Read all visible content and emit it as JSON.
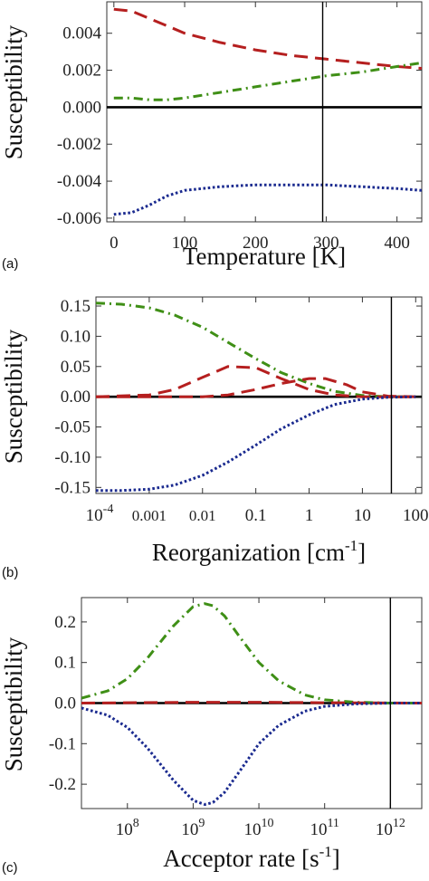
{
  "colors": {
    "red": "#b51f1f",
    "green": "#3f8f16",
    "blue": "#1a2a8f",
    "black": "#000000"
  },
  "chart_data": [
    {
      "type": "line",
      "panel_label": "(a)",
      "xlabel": "Temperature [K]",
      "ylabel": "Susceptibility",
      "xscale": "linear",
      "xlim": [
        -10,
        435
      ],
      "ylim": [
        -0.0062,
        0.0057
      ],
      "xticks": [
        0,
        100,
        200,
        300,
        400
      ],
      "xtick_labels": [
        "0",
        "100",
        "200",
        "300",
        "400"
      ],
      "yticks": [
        -0.006,
        -0.004,
        -0.002,
        0.0,
        0.002,
        0.004
      ],
      "ytick_labels": [
        "-0.006",
        "-0.004",
        "-0.002",
        "0.000",
        "0.002",
        "0.004"
      ],
      "vline": 295,
      "hline": 0,
      "series": [
        {
          "color_key": "red",
          "style": "dashed",
          "x": [
            0,
            25,
            50,
            75,
            100,
            150,
            200,
            250,
            300,
            350,
            400,
            435
          ],
          "y": [
            0.0053,
            0.0052,
            0.0048,
            0.0044,
            0.004,
            0.0035,
            0.0031,
            0.0028,
            0.0026,
            0.0024,
            0.0022,
            0.0021
          ]
        },
        {
          "color_key": "green",
          "style": "dashdot",
          "x": [
            0,
            25,
            50,
            75,
            100,
            150,
            200,
            250,
            300,
            350,
            400,
            435
          ],
          "y": [
            0.0005,
            0.0005,
            0.0004,
            0.0004,
            0.0005,
            0.0008,
            0.0011,
            0.0014,
            0.0017,
            0.0019,
            0.0022,
            0.0024
          ]
        },
        {
          "color_key": "blue",
          "style": "dotted",
          "x": [
            0,
            25,
            50,
            75,
            100,
            150,
            200,
            250,
            300,
            350,
            400,
            435
          ],
          "y": [
            -0.0058,
            -0.0057,
            -0.0053,
            -0.0048,
            -0.0045,
            -0.0043,
            -0.0042,
            -0.0042,
            -0.0042,
            -0.0043,
            -0.0044,
            -0.0045
          ]
        }
      ]
    },
    {
      "type": "line",
      "panel_label": "(b)",
      "xlabel": "Reorganization [cm",
      "xlabel_sup": "-1",
      "xlabel_end": "]",
      "ylabel": "Susceptibility",
      "xscale": "log",
      "xlim": [
        0.0001,
        130
      ],
      "ylim": [
        -0.16,
        0.165
      ],
      "xticks": [
        0.0001,
        0.001,
        0.01,
        0.1,
        1,
        10,
        100
      ],
      "xtick_labels": [
        "",
        "0.001",
        "0.01",
        "0.1",
        "1",
        "10",
        "100"
      ],
      "xtick_first_base": "10",
      "xtick_first_exp": "-4",
      "yticks": [
        -0.15,
        -0.1,
        -0.05,
        0.0,
        0.05,
        0.1,
        0.15
      ],
      "ytick_labels": [
        "-0.15",
        "-0.10",
        "-0.05",
        "0.00",
        "0.05",
        "0.10",
        "0.15"
      ],
      "vline": 35,
      "hline": 0,
      "series": [
        {
          "color_key": "green",
          "style": "dashdot",
          "x": [
            0.0001,
            0.0003,
            0.001,
            0.003,
            0.01,
            0.03,
            0.1,
            0.3,
            1,
            3,
            10,
            30,
            100
          ],
          "y": [
            0.155,
            0.153,
            0.147,
            0.135,
            0.115,
            0.09,
            0.063,
            0.04,
            0.022,
            0.009,
            0.002,
            0.0,
            0.0
          ]
        },
        {
          "color_key": "red",
          "style": "dashed",
          "x": [
            0.0001,
            0.001,
            0.003,
            0.01,
            0.03,
            0.1,
            0.3,
            1,
            3,
            10,
            30,
            100
          ],
          "y": [
            0.0,
            0.003,
            0.012,
            0.032,
            0.05,
            0.048,
            0.03,
            0.012,
            0.003,
            0.0,
            0.0,
            0.0
          ]
        },
        {
          "color_key": "red",
          "style": "dashed",
          "x": [
            0.0001,
            0.01,
            0.03,
            0.1,
            0.3,
            1,
            2,
            5,
            10,
            30,
            100
          ],
          "y": [
            0.0,
            0.0,
            0.003,
            0.012,
            0.022,
            0.03,
            0.03,
            0.02,
            0.008,
            0.001,
            0.0
          ]
        },
        {
          "color_key": "blue",
          "style": "dotted",
          "x": [
            0.0001,
            0.0003,
            0.001,
            0.003,
            0.01,
            0.03,
            0.1,
            0.3,
            1,
            3,
            10,
            30,
            100
          ],
          "y": [
            -0.155,
            -0.155,
            -0.153,
            -0.146,
            -0.13,
            -0.108,
            -0.08,
            -0.053,
            -0.03,
            -0.013,
            -0.004,
            -0.001,
            0.0
          ]
        }
      ]
    },
    {
      "type": "line",
      "panel_label": "(c)",
      "xlabel": "Acceptor rate [s",
      "xlabel_sup": "-1",
      "xlabel_end": "]",
      "ylabel": "Susceptibility",
      "xscale": "log",
      "xlim": [
        20000000,
        3000000000000
      ],
      "ylim": [
        -0.26,
        0.26
      ],
      "xticks": [
        100000000,
        1000000000,
        10000000000,
        100000000000,
        1000000000000
      ],
      "xtick_labels": [
        "10",
        "10",
        "10",
        "10",
        "10"
      ],
      "xtick_exps": [
        "8",
        "9",
        "10",
        "11",
        "12"
      ],
      "yticks": [
        -0.2,
        -0.1,
        0.0,
        0.1,
        0.2
      ],
      "ytick_labels": [
        "-0.2",
        "-0.1",
        "0.0",
        "0.1",
        "0.2"
      ],
      "vline": 1000000000000,
      "hline": 0,
      "series": [
        {
          "color_key": "green",
          "style": "dashdot",
          "x": [
            20000000,
            50000000,
            100000000,
            200000000,
            500000000,
            1000000000,
            1500000000,
            2000000000,
            3000000000,
            5000000000,
            10000000000,
            20000000000,
            50000000000,
            100000000000,
            300000000000,
            1000000000000,
            3000000000000
          ],
          "y": [
            0.012,
            0.03,
            0.06,
            0.11,
            0.19,
            0.238,
            0.245,
            0.24,
            0.215,
            0.165,
            0.1,
            0.055,
            0.02,
            0.008,
            0.002,
            0.0,
            0.0
          ]
        },
        {
          "color_key": "red",
          "style": "dashed",
          "x": [
            20000000,
            1000000000,
            10000000000,
            100000000000,
            3000000000000
          ],
          "y": [
            0.0,
            0.002,
            0.002,
            0.001,
            0.0
          ]
        },
        {
          "color_key": "blue",
          "style": "dotted",
          "x": [
            20000000,
            50000000,
            100000000,
            200000000,
            500000000,
            1000000000,
            1500000000,
            2000000000,
            3000000000,
            5000000000,
            10000000000,
            20000000000,
            50000000000,
            100000000000,
            300000000000,
            1000000000000,
            3000000000000
          ],
          "y": [
            -0.012,
            -0.03,
            -0.06,
            -0.11,
            -0.19,
            -0.24,
            -0.25,
            -0.245,
            -0.22,
            -0.17,
            -0.1,
            -0.055,
            -0.02,
            -0.008,
            -0.002,
            0.0,
            0.0
          ]
        }
      ]
    }
  ]
}
